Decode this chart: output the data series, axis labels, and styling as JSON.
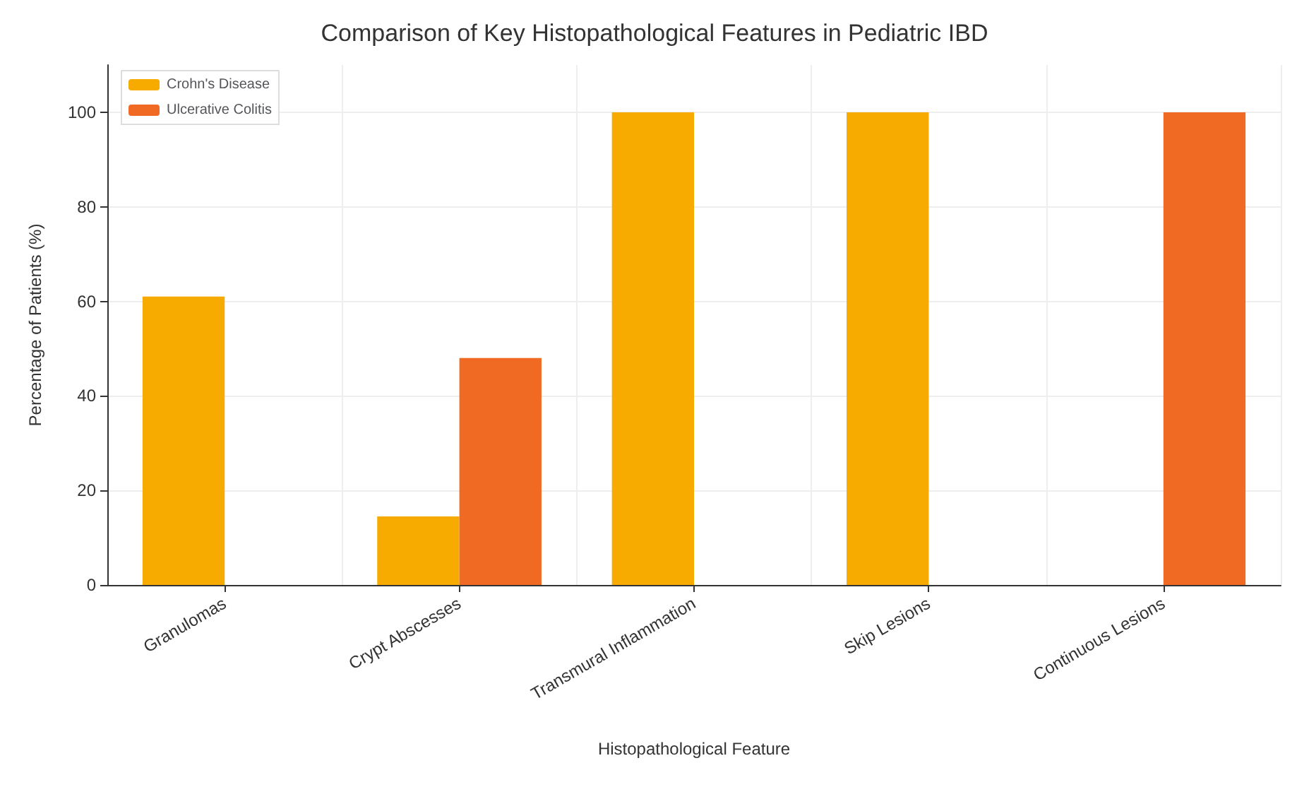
{
  "chart_data": {
    "type": "bar",
    "title": "Comparison of Key Histopathological Features in Pediatric IBD",
    "xlabel": "Histopathological Feature",
    "ylabel": "Percentage of Patients (%)",
    "categories": [
      "Granulomas",
      "Crypt Abscesses",
      "Transmural Inflammation",
      "Skip Lesions",
      "Continuous Lesions"
    ],
    "series": [
      {
        "name": "Crohn's Disease",
        "color": "#f7ab00",
        "values": [
          61,
          14.5,
          100,
          100,
          0
        ]
      },
      {
        "name": "Ulcerative Colitis",
        "color": "#f06a24",
        "values": [
          0,
          48,
          0,
          0,
          100
        ]
      }
    ],
    "ylim": [
      0,
      110
    ],
    "yticks": [
      0,
      20,
      40,
      60,
      80,
      100
    ],
    "grid": true,
    "legend": "top left"
  }
}
